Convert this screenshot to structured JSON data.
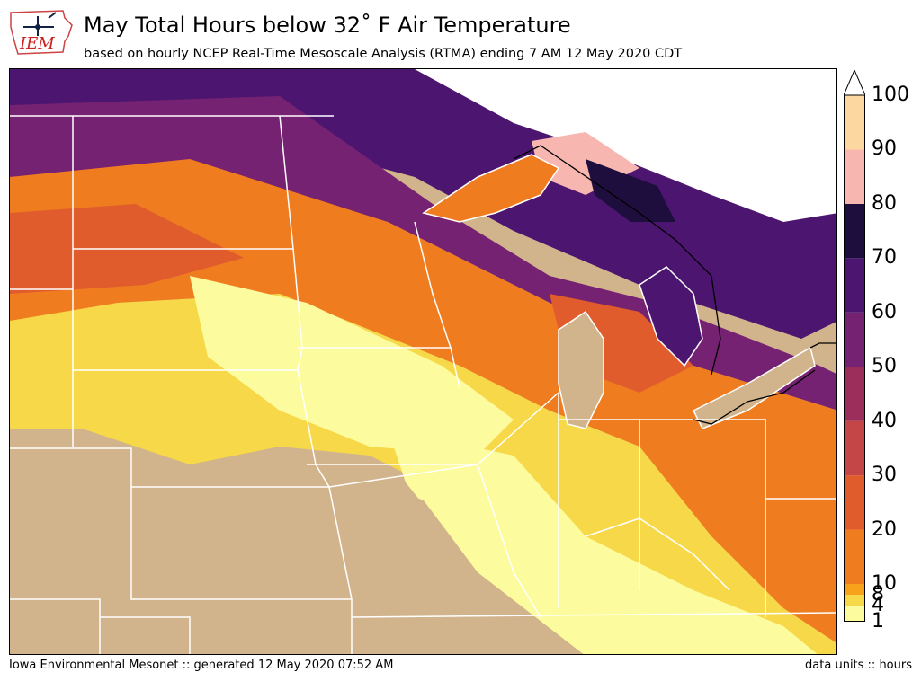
{
  "header": {
    "title": "May Total Hours below 32˚ F Air Temperature",
    "subtitle": "based on hourly NCEP Real-Time Mesoscale Analysis (RTMA) ending 7 AM 12 May 2020 CDT",
    "logo_text": "IEM"
  },
  "footer": {
    "left": "Iowa Environmental Mesonet :: generated 12 May 2020 07:52 AM",
    "right": "data units :: hours"
  },
  "colorbar": {
    "extend": "max",
    "bins": [
      {
        "from": 1,
        "to": 4,
        "color": "#fcfc9e"
      },
      {
        "from": 4,
        "to": 8,
        "color": "#f6d848"
      },
      {
        "from": 8,
        "to": 10,
        "color": "#f7a21a"
      },
      {
        "from": 10,
        "to": 20,
        "color": "#f07c20"
      },
      {
        "from": 20,
        "to": 30,
        "color": "#e05c2c"
      },
      {
        "from": 30,
        "to": 40,
        "color": "#c44646"
      },
      {
        "from": 40,
        "to": 50,
        "color": "#9c2e5c"
      },
      {
        "from": 50,
        "to": 60,
        "color": "#762272"
      },
      {
        "from": 60,
        "to": 70,
        "color": "#4c1570"
      },
      {
        "from": 70,
        "to": 80,
        "color": "#1e0e3e"
      },
      {
        "from": 80,
        "to": 90,
        "color": "#f8b6b0"
      },
      {
        "from": 90,
        "to": 100,
        "color": "#fcd8a0"
      }
    ],
    "tick_labels": [
      "1",
      "4",
      "8",
      "10",
      "20",
      "30",
      "40",
      "50",
      "60",
      "70",
      "80",
      "90",
      "100"
    ]
  },
  "colors": {
    "no_data": "#d2b48c",
    "above_max": "#ffffff",
    "state_lines": "#ffffff",
    "border_lines": "#000000"
  }
}
